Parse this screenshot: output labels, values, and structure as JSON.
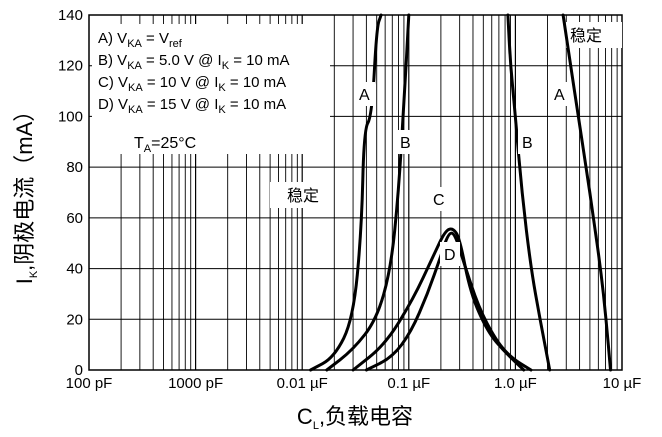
{
  "chart_data": {
    "type": "line",
    "x_scale": "log",
    "xlabel": {
      "main": "C",
      "sub": "L",
      "rest": ",负载电容"
    },
    "ylabel": {
      "main": "I",
      "sub": "K",
      "rest": ",阴极电流（mA）"
    },
    "xlim": [
      1e-10,
      1e-05
    ],
    "ylim": [
      0,
      140
    ],
    "x_ticks": [
      {
        "value": 1e-10,
        "label": "100 pF"
      },
      {
        "value": 1e-09,
        "label": "1000 pF"
      },
      {
        "value": 1e-08,
        "label": "0.01 µF"
      },
      {
        "value": 1e-07,
        "label": "0.1 µF"
      },
      {
        "value": 1e-06,
        "label": "1.0 µF"
      },
      {
        "value": 1e-05,
        "label": "10 µF"
      }
    ],
    "y_ticks": [
      {
        "value": 0,
        "label": "0"
      },
      {
        "value": 20,
        "label": "20"
      },
      {
        "value": 40,
        "label": "40"
      },
      {
        "value": 60,
        "label": "60"
      },
      {
        "value": 80,
        "label": "80"
      },
      {
        "value": 100,
        "label": "100"
      },
      {
        "value": 120,
        "label": "120"
      },
      {
        "value": 140,
        "label": "140"
      }
    ],
    "grid": true,
    "conditions": [
      {
        "prefix": "A) V",
        "sub": "KA",
        "mid": " = V",
        "sub2": "ref",
        "suffix": ""
      },
      {
        "prefix": "B) V",
        "sub": "KA",
        "mid": " = 5.0 V @ I",
        "sub2": "K",
        "suffix": " = 10 mA"
      },
      {
        "prefix": "C) V",
        "sub": "KA",
        "mid": " = 10 V @ I",
        "sub2": "K",
        "suffix": " = 10 mA"
      },
      {
        "prefix": "D) V",
        "sub": "KA",
        "mid": " = 15 V @ I",
        "sub2": "K",
        "suffix": " = 10 mA"
      }
    ],
    "temperature": {
      "prefix": "T",
      "sub": "A",
      "suffix": "=25°C"
    },
    "region_labels": [
      "稳定",
      "稳定"
    ],
    "series": [
      {
        "name": "A",
        "color": "#000000",
        "points": [
          [
            1.2e-08,
            0
          ],
          [
            2e-08,
            5
          ],
          [
            3e-08,
            20
          ],
          [
            3.6e-08,
            55
          ],
          [
            3.8e-08,
            95
          ],
          [
            4.5e-08,
            100
          ],
          [
            5e-08,
            135
          ],
          [
            5.5e-08,
            140
          ]
        ]
      },
      {
        "name": "A",
        "color": "#000000",
        "points": [
          [
            2.8e-06,
            140
          ],
          [
            3.3e-06,
            120
          ],
          [
            3.9e-06,
            100
          ],
          [
            4.6e-06,
            80
          ],
          [
            5.4e-06,
            60
          ],
          [
            6.3e-06,
            40
          ],
          [
            7.1e-06,
            20
          ],
          [
            7.8e-06,
            0
          ]
        ]
      },
      {
        "name": "B",
        "color": "#000000",
        "points": [
          [
            1.7e-08,
            0
          ],
          [
            3e-08,
            8
          ],
          [
            5e-08,
            20
          ],
          [
            6.8e-08,
            40
          ],
          [
            8e-08,
            70
          ],
          [
            9e-08,
            105
          ],
          [
            1e-07,
            140
          ]
        ]
      },
      {
        "name": "B",
        "color": "#000000",
        "points": [
          [
            8.5e-07,
            140
          ],
          [
            9e-07,
            120
          ],
          [
            1e-06,
            100
          ],
          [
            1.15e-06,
            70
          ],
          [
            1.4e-06,
            40
          ],
          [
            1.7e-06,
            20
          ],
          [
            2.1e-06,
            0
          ]
        ]
      },
      {
        "name": "C",
        "color": "#000000",
        "points": [
          [
            3e-08,
            0
          ],
          [
            6e-08,
            10
          ],
          [
            1.1e-07,
            28
          ],
          [
            1.7e-07,
            45
          ],
          [
            2.2e-07,
            55
          ],
          [
            2.6e-07,
            56
          ],
          [
            3e-07,
            52
          ],
          [
            3.8e-07,
            30
          ],
          [
            5.5e-07,
            15
          ],
          [
            8e-07,
            7
          ],
          [
            1.2e-06,
            0
          ]
        ]
      },
      {
        "name": "D",
        "color": "#000000",
        "points": [
          [
            4e-08,
            0
          ],
          [
            7e-08,
            5
          ],
          [
            1.05e-07,
            15
          ],
          [
            1.5e-07,
            30
          ],
          [
            2e-07,
            45
          ],
          [
            2.35e-07,
            54
          ],
          [
            2.7e-07,
            54
          ],
          [
            3.3e-07,
            42
          ],
          [
            4.5e-07,
            25
          ],
          [
            6.5e-07,
            12
          ],
          [
            9e-07,
            5
          ],
          [
            1.4e-06,
            0
          ]
        ]
      }
    ],
    "curve_labels": [
      "A",
      "A",
      "B",
      "B",
      "C",
      "D"
    ]
  }
}
